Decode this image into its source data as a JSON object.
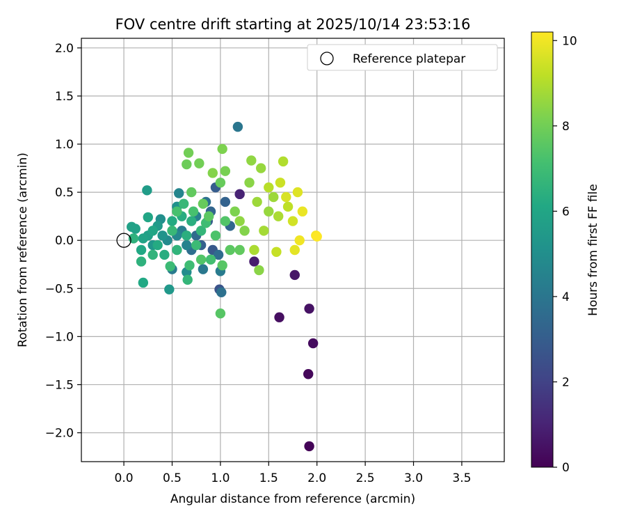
{
  "chart_data": {
    "type": "scatter",
    "title": "FOV centre drift starting at 2025/10/14 23:53:16",
    "xlabel": "Angular distance from reference (arcmin)",
    "ylabel": "Rotation from reference (arcmin)",
    "xlim": [
      -0.44,
      3.94
    ],
    "ylim": [
      -2.3,
      2.1
    ],
    "xticks": [
      0.0,
      0.5,
      1.0,
      1.5,
      2.0,
      2.5,
      3.0,
      3.5
    ],
    "xtick_labels": [
      "0.0",
      "0.5",
      "1.0",
      "1.5",
      "2.0",
      "2.5",
      "3.0",
      "3.5"
    ],
    "yticks": [
      -2.0,
      -1.5,
      -1.0,
      -0.5,
      0.0,
      0.5,
      1.0,
      1.5,
      2.0
    ],
    "ytick_labels": [
      "−2.0",
      "−1.5",
      "−1.0",
      "−0.5",
      "0.0",
      "0.5",
      "1.0",
      "1.5",
      "2.0"
    ],
    "grid": true,
    "legend": {
      "position": "top-right",
      "entries": [
        "Reference platepar"
      ]
    },
    "reference_point": {
      "label": "Reference platepar",
      "x": 0.0,
      "y": 0.0
    },
    "colorbar": {
      "label": "Hours from first FF file",
      "colormap": "viridis",
      "range": [
        0,
        10.2
      ],
      "ticks": [
        0,
        2,
        4,
        6,
        8,
        10
      ],
      "tick_labels": [
        "0",
        "2",
        "4",
        "6",
        "8",
        "10"
      ]
    },
    "points": [
      {
        "x": 1.92,
        "y": -2.14,
        "h": 0.1
      },
      {
        "x": 1.91,
        "y": -1.39,
        "h": 0.2
      },
      {
        "x": 1.96,
        "y": -1.07,
        "h": 0.3
      },
      {
        "x": 1.61,
        "y": -0.8,
        "h": 0.4
      },
      {
        "x": 1.92,
        "y": -0.71,
        "h": 0.5
      },
      {
        "x": 1.77,
        "y": -0.36,
        "h": 0.6
      },
      {
        "x": 1.35,
        "y": -0.22,
        "h": 0.8
      },
      {
        "x": 1.2,
        "y": 0.48,
        "h": 1.0
      },
      {
        "x": 0.99,
        "y": -0.51,
        "h": 2.6
      },
      {
        "x": 0.92,
        "y": -0.1,
        "h": 2.8
      },
      {
        "x": 0.87,
        "y": 0.2,
        "h": 2.9
      },
      {
        "x": 0.95,
        "y": 0.55,
        "h": 3.0
      },
      {
        "x": 0.8,
        "y": -0.05,
        "h": 3.1
      },
      {
        "x": 1.05,
        "y": 0.4,
        "h": 3.2
      },
      {
        "x": 0.9,
        "y": 0.3,
        "h": 3.3
      },
      {
        "x": 1.1,
        "y": 0.15,
        "h": 3.4
      },
      {
        "x": 0.75,
        "y": 0.05,
        "h": 3.5
      },
      {
        "x": 0.98,
        "y": -0.15,
        "h": 3.6
      },
      {
        "x": 0.7,
        "y": -0.1,
        "h": 3.7
      },
      {
        "x": 0.85,
        "y": 0.4,
        "h": 3.8
      },
      {
        "x": 1.01,
        "y": -0.54,
        "h": 3.8
      },
      {
        "x": 1.18,
        "y": 1.18,
        "h": 4.0
      },
      {
        "x": 0.82,
        "y": -0.3,
        "h": 4.1
      },
      {
        "x": 0.5,
        "y": -0.3,
        "h": 4.2
      },
      {
        "x": 1.0,
        "y": -0.32,
        "h": 4.2
      },
      {
        "x": 0.6,
        "y": 0.1,
        "h": 4.3
      },
      {
        "x": 0.75,
        "y": 0.25,
        "h": 4.4
      },
      {
        "x": 0.65,
        "y": -0.05,
        "h": 4.5
      },
      {
        "x": 0.57,
        "y": 0.49,
        "h": 4.6
      },
      {
        "x": 0.55,
        "y": 0.05,
        "h": 4.7
      },
      {
        "x": 0.45,
        "y": 0.0,
        "h": 4.8
      },
      {
        "x": 0.65,
        "y": -0.33,
        "h": 4.9
      },
      {
        "x": 0.38,
        "y": 0.22,
        "h": 5.0
      },
      {
        "x": 0.55,
        "y": 0.35,
        "h": 5.1
      },
      {
        "x": 0.4,
        "y": 0.05,
        "h": 5.2
      },
      {
        "x": 0.3,
        "y": -0.05,
        "h": 5.3
      },
      {
        "x": 0.47,
        "y": -0.51,
        "h": 5.4
      },
      {
        "x": 0.35,
        "y": 0.15,
        "h": 5.5
      },
      {
        "x": 0.24,
        "y": 0.52,
        "h": 5.6
      },
      {
        "x": 0.25,
        "y": 0.05,
        "h": 5.7
      },
      {
        "x": 0.08,
        "y": 0.14,
        "h": 5.8
      },
      {
        "x": 0.12,
        "y": 0.12,
        "h": 5.8
      },
      {
        "x": 0.2,
        "y": 0.02,
        "h": 5.9
      },
      {
        "x": 0.3,
        "y": 0.1,
        "h": 6.0
      },
      {
        "x": 0.25,
        "y": 0.24,
        "h": 6.0
      },
      {
        "x": 0.18,
        "y": -0.1,
        "h": 6.1
      },
      {
        "x": 0.2,
        "y": -0.44,
        "h": 6.1
      },
      {
        "x": 0.35,
        "y": -0.05,
        "h": 6.2
      },
      {
        "x": 0.5,
        "y": 0.2,
        "h": 6.2
      },
      {
        "x": 0.42,
        "y": -0.15,
        "h": 6.3
      },
      {
        "x": 0.6,
        "y": 0.25,
        "h": 6.3
      },
      {
        "x": 0.65,
        "y": 0.05,
        "h": 6.4
      },
      {
        "x": 0.7,
        "y": 0.2,
        "h": 6.4
      },
      {
        "x": 0.1,
        "y": 0.02,
        "h": 6.5
      },
      {
        "x": 0.18,
        "y": -0.22,
        "h": 6.5
      },
      {
        "x": 0.3,
        "y": -0.15,
        "h": 6.6
      },
      {
        "x": 0.55,
        "y": -0.1,
        "h": 6.6
      },
      {
        "x": 0.8,
        "y": 0.1,
        "h": 6.7
      },
      {
        "x": 0.66,
        "y": -0.41,
        "h": 6.7
      },
      {
        "x": 0.5,
        "y": 0.1,
        "h": 6.8
      },
      {
        "x": 0.62,
        "y": 0.38,
        "h": 6.8
      },
      {
        "x": 0.48,
        "y": -0.27,
        "h": 6.9
      },
      {
        "x": 0.75,
        "y": -0.05,
        "h": 6.9
      },
      {
        "x": 0.85,
        "y": 0.18,
        "h": 7.0
      },
      {
        "x": 0.68,
        "y": -0.26,
        "h": 7.0
      },
      {
        "x": 0.9,
        "y": -0.2,
        "h": 7.1
      },
      {
        "x": 0.55,
        "y": 0.3,
        "h": 7.2
      },
      {
        "x": 0.72,
        "y": 0.3,
        "h": 7.2
      },
      {
        "x": 0.95,
        "y": 0.05,
        "h": 7.3
      },
      {
        "x": 1.05,
        "y": 0.2,
        "h": 7.4
      },
      {
        "x": 0.8,
        "y": -0.2,
        "h": 7.4
      },
      {
        "x": 1.0,
        "y": -0.76,
        "h": 7.5
      },
      {
        "x": 1.02,
        "y": -0.26,
        "h": 7.5
      },
      {
        "x": 1.1,
        "y": -0.1,
        "h": 7.6
      },
      {
        "x": 0.88,
        "y": 0.25,
        "h": 7.6
      },
      {
        "x": 1.2,
        "y": -0.1,
        "h": 7.7
      },
      {
        "x": 0.7,
        "y": 0.5,
        "h": 7.7
      },
      {
        "x": 1.0,
        "y": 0.6,
        "h": 7.8
      },
      {
        "x": 0.82,
        "y": 0.38,
        "h": 7.8
      },
      {
        "x": 0.65,
        "y": 0.79,
        "h": 7.9
      },
      {
        "x": 0.67,
        "y": 0.91,
        "h": 8.0
      },
      {
        "x": 0.78,
        "y": 0.8,
        "h": 8.0
      },
      {
        "x": 1.05,
        "y": 0.72,
        "h": 8.1
      },
      {
        "x": 1.02,
        "y": 0.95,
        "h": 8.2
      },
      {
        "x": 1.15,
        "y": 0.3,
        "h": 8.2
      },
      {
        "x": 1.25,
        "y": 0.1,
        "h": 8.3
      },
      {
        "x": 0.92,
        "y": 0.7,
        "h": 8.3
      },
      {
        "x": 1.3,
        "y": 0.6,
        "h": 8.4
      },
      {
        "x": 1.4,
        "y": -0.31,
        "h": 8.4
      },
      {
        "x": 1.2,
        "y": 0.2,
        "h": 8.5
      },
      {
        "x": 1.32,
        "y": 0.83,
        "h": 8.5
      },
      {
        "x": 1.42,
        "y": 0.75,
        "h": 8.6
      },
      {
        "x": 1.5,
        "y": 0.3,
        "h": 8.6
      },
      {
        "x": 1.38,
        "y": 0.4,
        "h": 8.7
      },
      {
        "x": 1.55,
        "y": 0.45,
        "h": 8.7
      },
      {
        "x": 1.45,
        "y": 0.1,
        "h": 8.8
      },
      {
        "x": 1.6,
        "y": 0.25,
        "h": 8.9
      },
      {
        "x": 1.35,
        "y": -0.1,
        "h": 8.9
      },
      {
        "x": 1.65,
        "y": 0.82,
        "h": 9.0
      },
      {
        "x": 1.5,
        "y": 0.55,
        "h": 9.1
      },
      {
        "x": 1.7,
        "y": 0.35,
        "h": 9.2
      },
      {
        "x": 1.58,
        "y": -0.12,
        "h": 9.3
      },
      {
        "x": 1.62,
        "y": 0.6,
        "h": 9.4
      },
      {
        "x": 1.75,
        "y": 0.2,
        "h": 9.5
      },
      {
        "x": 1.68,
        "y": 0.45,
        "h": 9.6
      },
      {
        "x": 1.8,
        "y": 0.5,
        "h": 9.7
      },
      {
        "x": 1.77,
        "y": -0.1,
        "h": 9.8
      },
      {
        "x": 1.85,
        "y": 0.3,
        "h": 9.9
      },
      {
        "x": 1.82,
        "y": 0.0,
        "h": 10.0
      },
      {
        "x": 1.99,
        "y": 0.05,
        "h": 10.1
      },
      {
        "x": 2.0,
        "y": 0.04,
        "h": 10.2
      }
    ]
  }
}
